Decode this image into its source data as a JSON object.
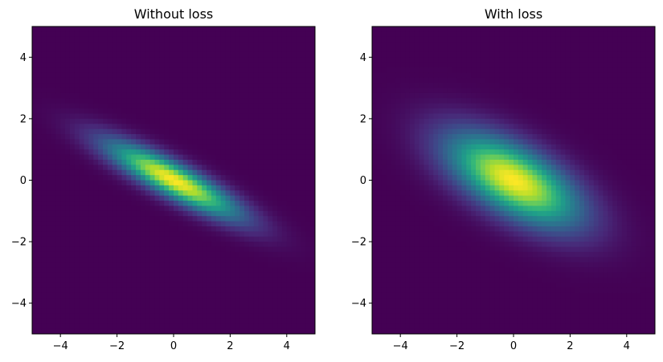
{
  "chart_data": [
    {
      "type": "heatmap",
      "title": "Without loss",
      "xlabel": "",
      "ylabel": "",
      "xlim": [
        -5,
        5
      ],
      "ylim": [
        -5,
        5
      ],
      "xticks": [
        -4,
        -2,
        0,
        2,
        4
      ],
      "yticks": [
        -4,
        -2,
        0,
        2,
        4
      ],
      "xtick_labels": [
        "−4",
        "−2",
        "0",
        "2",
        "4"
      ],
      "ytick_labels": [
        "−4",
        "−2",
        "0",
        "2",
        "4"
      ],
      "colormap": "viridis",
      "grid": false,
      "distribution": {
        "shape": "2D Gaussian",
        "center": [
          0,
          0
        ],
        "variance_x": 2.5,
        "variance_y": 0.7,
        "covariance": -1.15,
        "peak": 1.0
      }
    },
    {
      "type": "heatmap",
      "title": "With loss",
      "xlabel": "",
      "ylabel": "",
      "xlim": [
        -5,
        5
      ],
      "ylim": [
        -5,
        5
      ],
      "xticks": [
        -4,
        -2,
        0,
        2,
        4
      ],
      "yticks": [
        -4,
        -2,
        0,
        2,
        4
      ],
      "xtick_labels": [
        "−4",
        "−2",
        "0",
        "2",
        "4"
      ],
      "ytick_labels": [
        "−4",
        "−2",
        "0",
        "2",
        "4"
      ],
      "colormap": "viridis",
      "grid": false,
      "distribution": {
        "shape": "2D Gaussian",
        "center": [
          0,
          0
        ],
        "variance_x": 2.5,
        "variance_y": 1.05,
        "covariance": -1.0,
        "peak": 1.0
      }
    }
  ],
  "colors": {
    "viridis": [
      "#440154",
      "#482878",
      "#3e4989",
      "#31688e",
      "#26828e",
      "#1f9e89",
      "#35b779",
      "#6ece58",
      "#b5de2b",
      "#fde725"
    ]
  }
}
